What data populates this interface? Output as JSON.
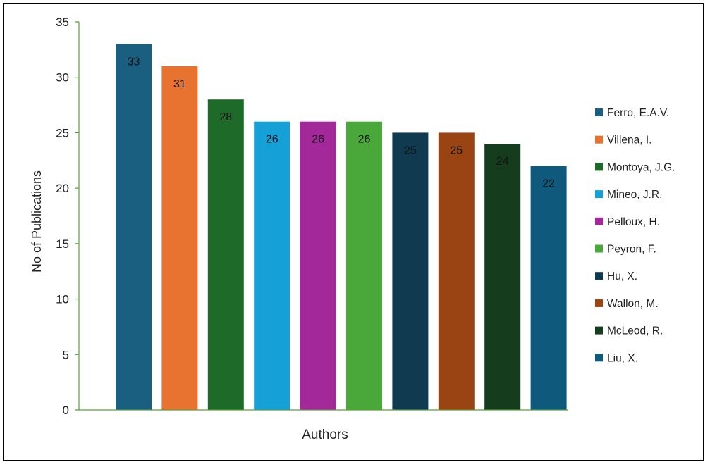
{
  "chart_data": {
    "type": "bar",
    "xlabel": "Authors",
    "ylabel": "No of Publications",
    "ylim": [
      0,
      35
    ],
    "yticks": [
      0,
      5,
      10,
      15,
      20,
      25,
      30,
      35
    ],
    "grid": false,
    "legend_position": "right",
    "data_labels": true,
    "categories": [
      "Ferro, E.A.V.",
      "Villena, I.",
      "Montoya, J.G.",
      "Mineo, J.R.",
      "Pelloux, H.",
      "Peyron, F.",
      "Hu, X.",
      "Wallon, M.",
      "McLeod, R.",
      "Liu, X."
    ],
    "values": [
      33,
      31,
      28,
      26,
      26,
      26,
      25,
      25,
      24,
      22
    ],
    "colors": [
      "#1a5e80",
      "#e87330",
      "#1e6b29",
      "#15a0d8",
      "#a3299a",
      "#4aa83a",
      "#103a50",
      "#9a4414",
      "#143c1d",
      "#0f5a7c"
    ],
    "axis_color": "#4ea72e"
  }
}
